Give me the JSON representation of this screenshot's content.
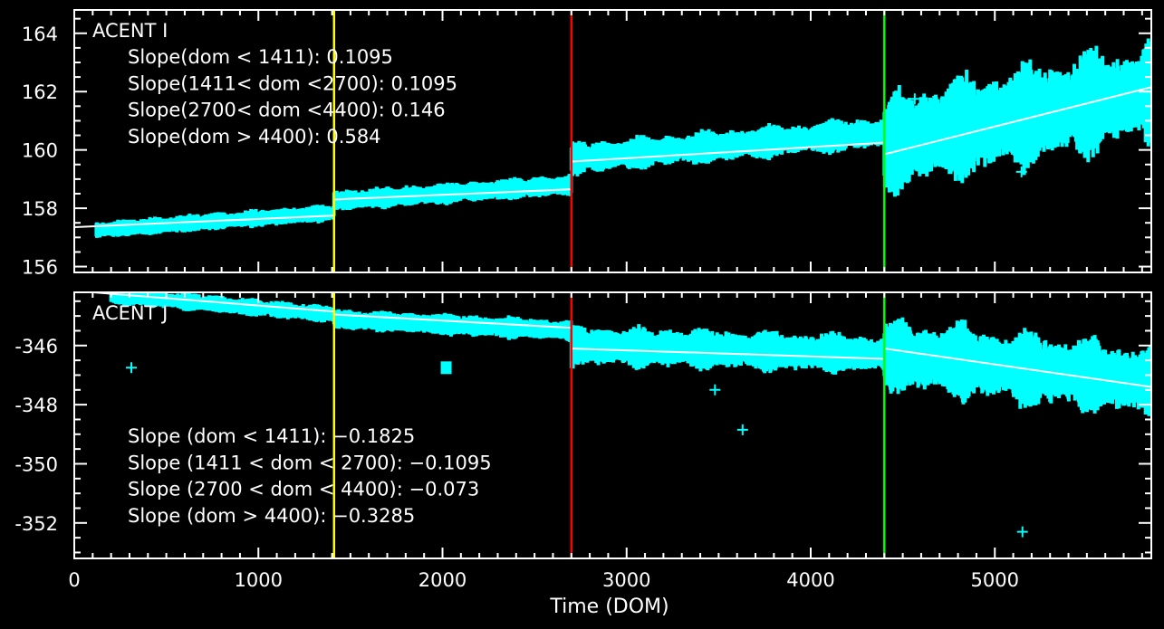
{
  "chart_data": {
    "type": "scatter",
    "xlabel": "Time (DOM)",
    "xlim": [
      0,
      5850
    ],
    "x_ticks": [
      0,
      1000,
      2000,
      3000,
      4000,
      5000
    ],
    "breakpoints": [
      {
        "x": 1411,
        "color": "#ffff00"
      },
      {
        "x": 2700,
        "color": "#ff0000"
      },
      {
        "x": 4400,
        "color": "#00ff00"
      }
    ],
    "colors": {
      "data": "#00ffff",
      "fit": "#ffffff",
      "axes": "#ffffff",
      "background": "#000000"
    },
    "panels": [
      {
        "title": "ACENT I",
        "ylim": [
          155.8,
          164.8
        ],
        "y_ticks": [
          156,
          158,
          160,
          162,
          164
        ],
        "annotations": [
          "Slope(dom < 1411): 0.1095",
          "Slope(1411< dom <2700): 0.1095",
          "Slope(2700< dom <4400): 0.146",
          "Slope(dom > 4400): 0.584"
        ],
        "annotation_position": "top-left",
        "bands": [
          {
            "x0": 120,
            "x1": 1411,
            "y0": 157.25,
            "y1": 157.85,
            "half_width": 0.25
          },
          {
            "x0": 1411,
            "x1": 2700,
            "y0": 158.25,
            "y1": 158.8,
            "half_width": 0.3
          },
          {
            "x0": 2700,
            "x1": 4400,
            "y0": 159.7,
            "y1": 160.6,
            "half_width": 0.45
          },
          {
            "x0": 4400,
            "x1": 5850,
            "y0": 160.2,
            "y1": 162.0,
            "half_width": 1.4
          }
        ],
        "fit_segments": [
          {
            "x0": 0,
            "x1": 1411,
            "y0": 157.35,
            "y1": 157.75
          },
          {
            "x0": 1411,
            "x1": 2700,
            "y0": 158.3,
            "y1": 158.65
          },
          {
            "x0": 2700,
            "x1": 4400,
            "y0": 159.6,
            "y1": 160.25
          },
          {
            "x0": 4400,
            "x1": 5850,
            "y0": 159.85,
            "y1": 162.15
          }
        ],
        "outliers": [
          {
            "x": 4565,
            "y": 161.75
          },
          {
            "x": 5145,
            "y": 159.25
          },
          {
            "x": 4600,
            "y": 161.4
          }
        ]
      },
      {
        "title": "ACENT J",
        "ylim": [
          -353.2,
          -344.2
        ],
        "y_ticks": [
          -346,
          -348,
          -350,
          -352
        ],
        "annotations": [
          "Slope (dom < 1411): −0.1825",
          "Slope (1411 < dom < 2700): −0.1095",
          "Slope (2700 < dom < 4400): −0.073",
          "Slope (dom > 4400): −0.3285"
        ],
        "annotation_position": "bottom-left",
        "bands": [
          {
            "x0": 200,
            "x1": 1411,
            "y0": -344.3,
            "y1": -344.95,
            "half_width": 0.25
          },
          {
            "x0": 1411,
            "x1": 2700,
            "y0": -345.1,
            "y1": -345.5,
            "half_width": 0.3
          },
          {
            "x0": 2700,
            "x1": 4400,
            "y0": -346.0,
            "y1": -346.3,
            "half_width": 0.55
          },
          {
            "x0": 4400,
            "x1": 5850,
            "y0": -346.3,
            "y1": -347.2,
            "half_width": 1.0
          }
        ],
        "fit_segments": [
          {
            "x0": 0,
            "x1": 1411,
            "y0": -344.15,
            "y1": -344.85
          },
          {
            "x0": 1411,
            "x1": 2700,
            "y0": -344.95,
            "y1": -345.4
          },
          {
            "x0": 2700,
            "x1": 4400,
            "y0": -346.1,
            "y1": -346.45
          },
          {
            "x0": 4400,
            "x1": 5850,
            "y0": -346.1,
            "y1": -347.4
          }
        ],
        "outliers": [
          {
            "x": 310,
            "y": -346.75
          },
          {
            "x": 3480,
            "y": -347.5
          },
          {
            "x": 3630,
            "y": -348.85
          },
          {
            "x": 5150,
            "y": -352.3
          }
        ],
        "outlier_squares": [
          {
            "x": 2020,
            "y": -346.75
          }
        ]
      }
    ]
  }
}
